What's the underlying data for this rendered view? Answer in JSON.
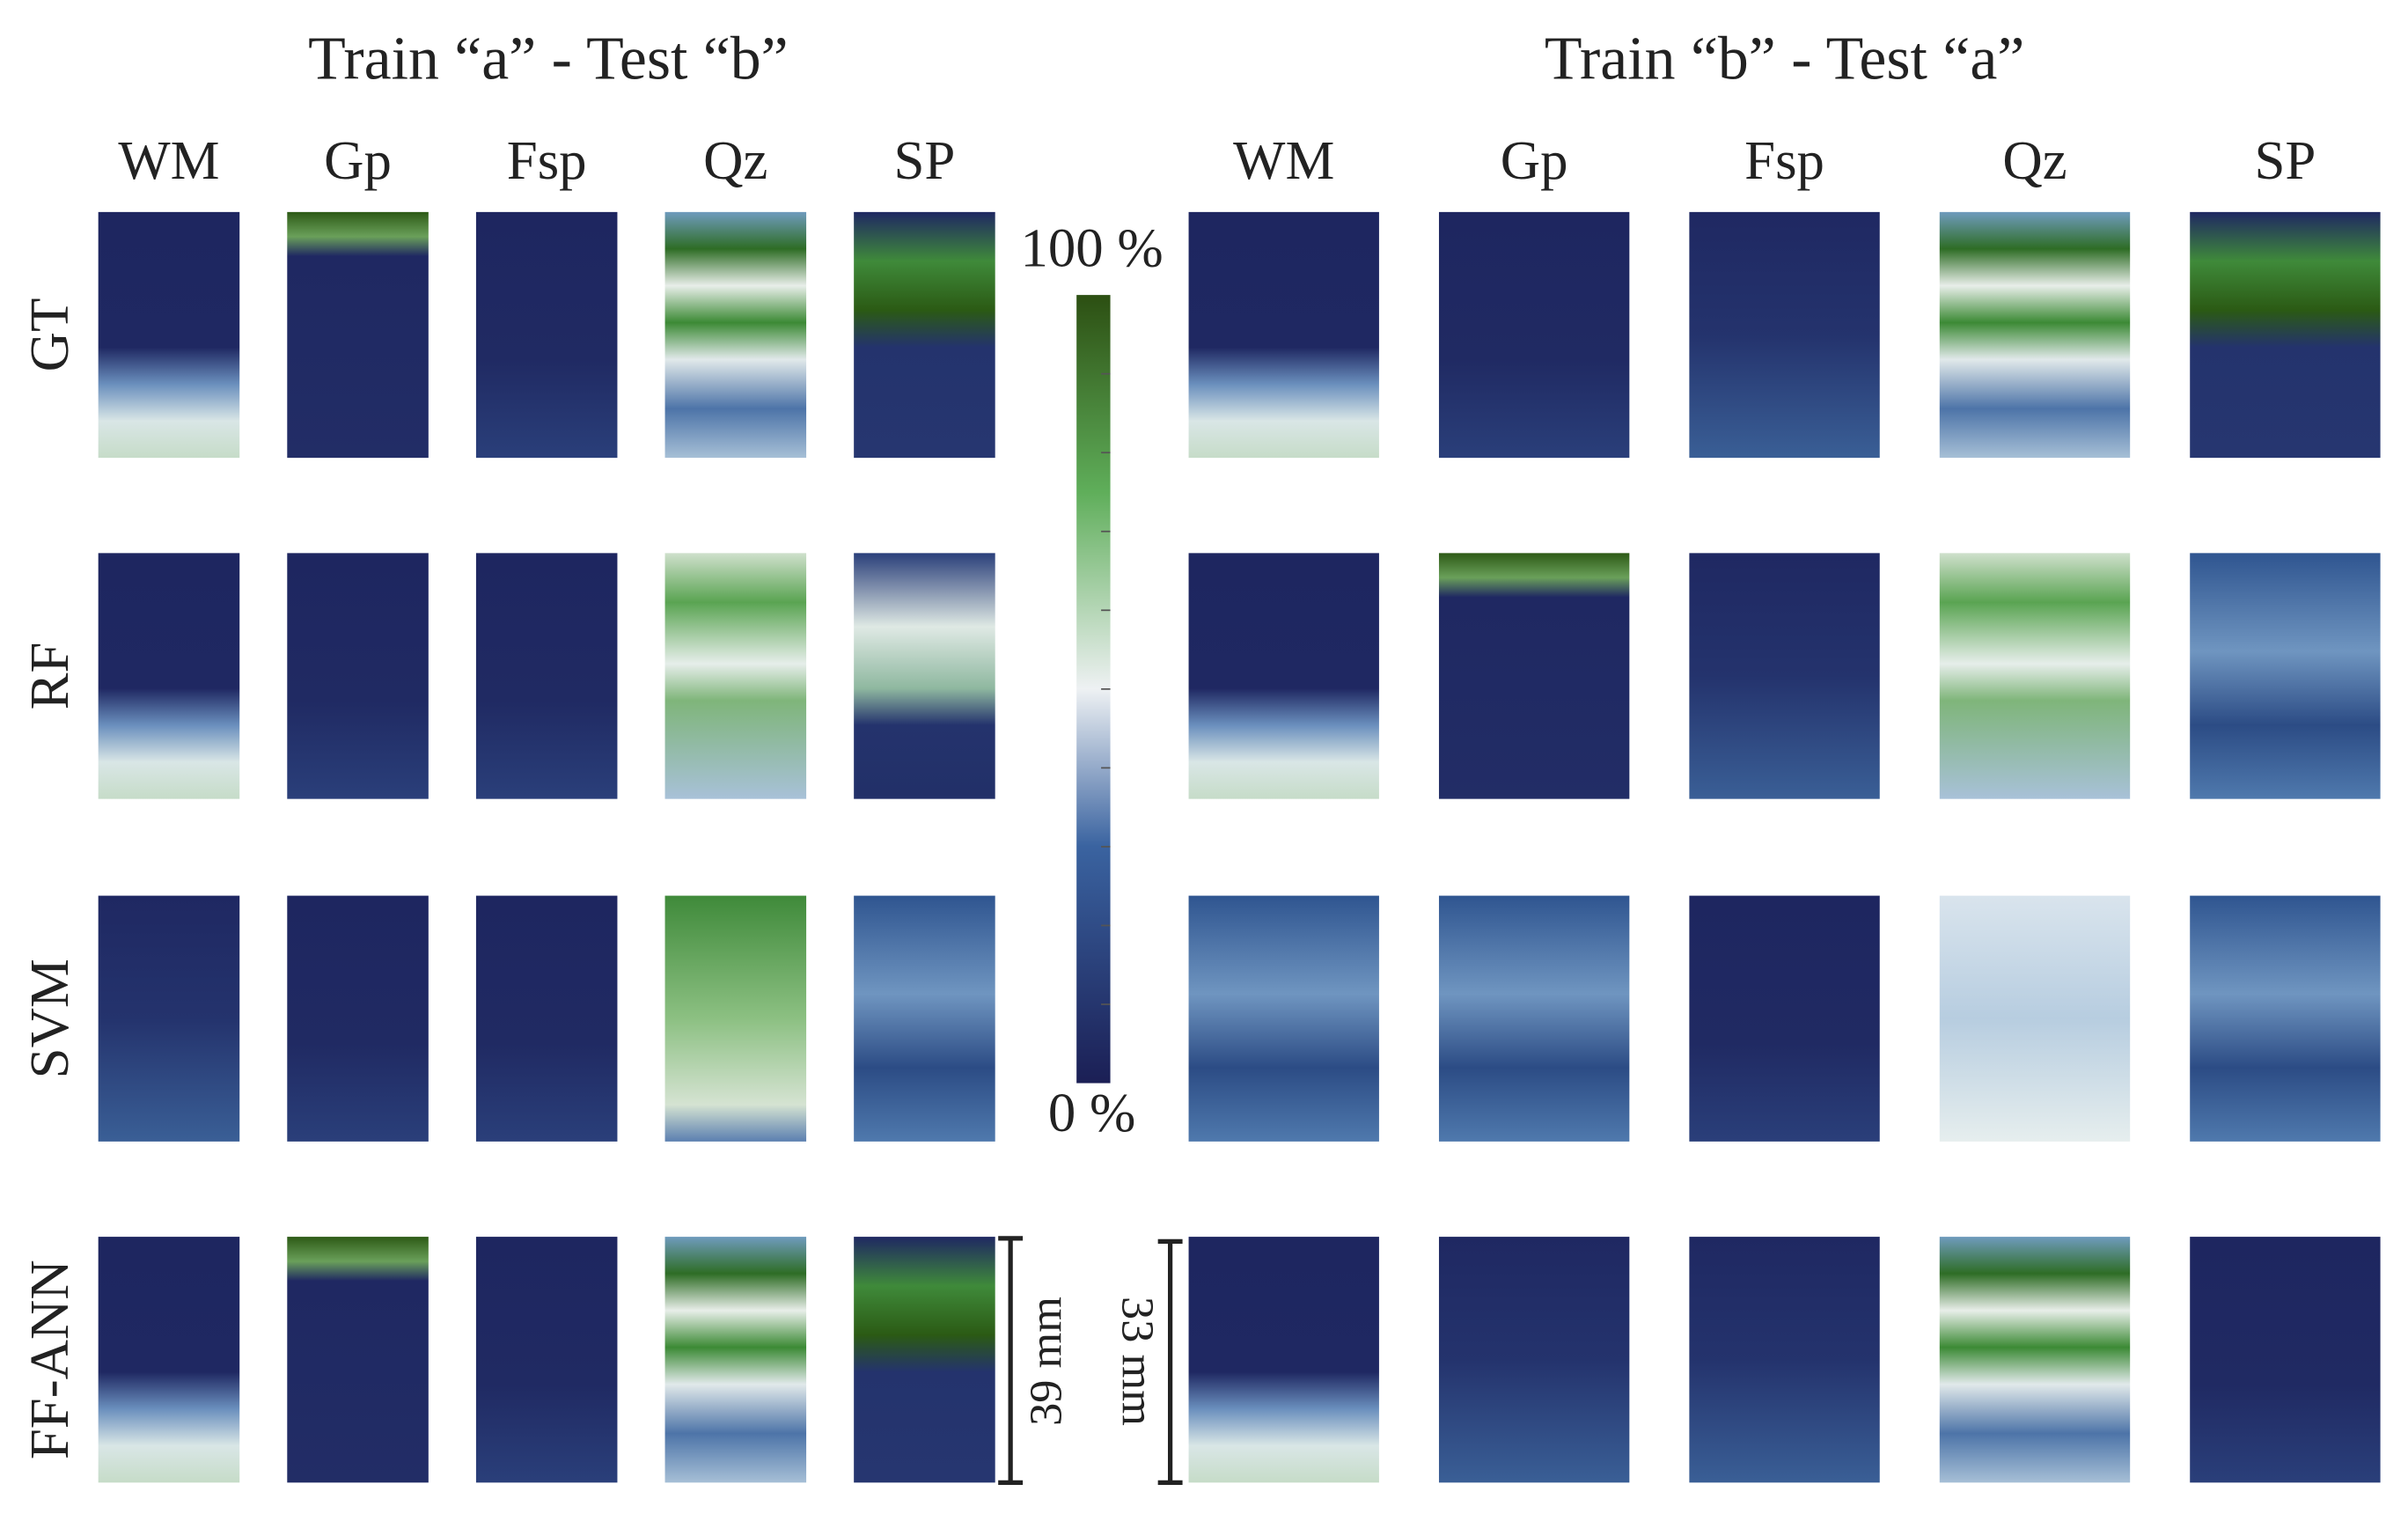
{
  "titles": [
    "Train “a”  -  Test “b”",
    "Train “b”  -  Test “a”"
  ],
  "columns": [
    "WM",
    "Gp",
    "Fsp",
    "Qz",
    "SP"
  ],
  "rows": [
    "GT",
    "RF",
    "SVM",
    "FF-ANN"
  ],
  "colorbar": {
    "max_label": "100 %",
    "min_label": "0 %"
  },
  "scale_bars": [
    "39 mm",
    "33 mm"
  ]
}
